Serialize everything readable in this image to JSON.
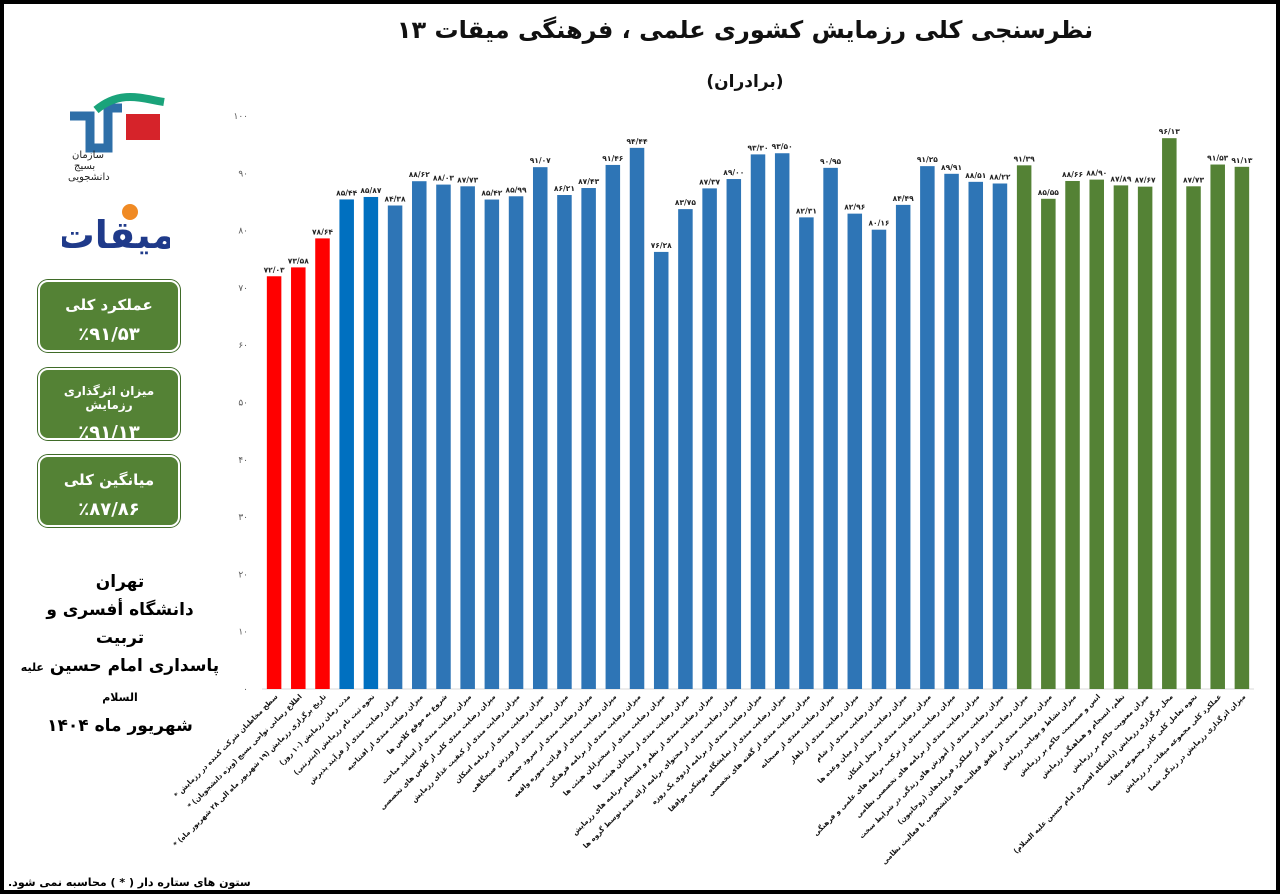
{
  "header": {
    "title": "نظرسنجی کلی  رزمایش کشوری علمی ، فرهنگی میقات ۱۳",
    "subtitle": "(برادران)"
  },
  "logos": {
    "basij_text": [
      "سازمان",
      "بسیج",
      "دانشجویی"
    ],
    "miqat_text": "میقات"
  },
  "summary_boxes": [
    {
      "label": "عملکرد کلی",
      "value": "٪۹۱/۵۳"
    },
    {
      "label": "میزان اثرگذاری رزمایش",
      "value": "٪۹۱/۱۳"
    },
    {
      "label": "میانگین کلی",
      "value": "٪۸۷/۸۶"
    }
  ],
  "location": {
    "city": "تهران",
    "line1": "دانشگاه أفسری و تربیت",
    "line2": "پاسداری امام حسین",
    "line2_suffix": "علیه السلام",
    "date": "شهریور ماه ۱۴۰۴"
  },
  "footnote": "ستون های ستاره دار ( * ) محاسبه نمی شود.",
  "colors": {
    "red": "#ff0000",
    "blue": "#2e75b6",
    "blue_dark": "#0070c0",
    "green": "#548235",
    "axis": "#d9d9d9"
  },
  "chart_data": {
    "type": "bar",
    "ylim": [
      0,
      100
    ],
    "yticks": [
      "۰",
      "۱۰",
      "۲۰",
      "۳۰",
      "۴۰",
      "۵۰",
      "۶۰",
      "۷۰",
      "۸۰",
      "۹۰",
      "۱۰۰"
    ],
    "grid": false,
    "legend": "none",
    "bars": [
      {
        "category": "سطح مخاطبان شرکت کننده در رزمایش *",
        "value": 72.03,
        "label": "۷۲/۰۳",
        "group": "red"
      },
      {
        "category": "اطلاع رسانی نواحی بسیج (ویژه دانشجویان) *",
        "value": 73.58,
        "label": "۷۳/۵۸",
        "group": "red"
      },
      {
        "category": "تاریخ برگزاری رزمایش (۱۹ شهریور ماه الی ۲۸ شهریور ماه) *",
        "value": 78.64,
        "label": "۷۸/۶۴",
        "group": "red"
      },
      {
        "category": "مدت زمان رزمایش (۱۰ روز)",
        "value": 85.44,
        "label": "۸۵/۴۴",
        "group": "blue_dark"
      },
      {
        "category": "نحوه ثبت نام رزمایش (اینترنتی)",
        "value": 85.87,
        "label": "۸۵/۸۷",
        "group": "blue_dark"
      },
      {
        "category": "میزان رضایت مندی از فرآیند پذیرش",
        "value": 84.38,
        "label": "۸۴/۳۸",
        "group": "blue"
      },
      {
        "category": "میزان رضایت مندی از افتتاحیه",
        "value": 88.62,
        "label": "۸۸/۶۲",
        "group": "blue"
      },
      {
        "category": "شروع به موقع کلاس ها",
        "value": 88.03,
        "label": "۸۸/۰۳",
        "group": "blue"
      },
      {
        "category": "میزان رضایت مندی از اساتید مباحث",
        "value": 87.73,
        "label": "۸۷/۷۳",
        "group": "blue"
      },
      {
        "category": "میزان رضایت مندی کلی از کلاس های تخصصی",
        "value": 85.42,
        "label": "۸۵/۴۲",
        "group": "blue"
      },
      {
        "category": "میزان رضایت مندی از کیفیت غذای رزمایش",
        "value": 85.99,
        "label": "۸۵/۹۹",
        "group": "blue"
      },
      {
        "category": "میزان رضایت مندی از برنامه اسکان",
        "value": 91.07,
        "label": "۹۱/۰۷",
        "group": "blue"
      },
      {
        "category": "میزان رضایت مندی از ورزش صبحگاهی",
        "value": 86.21,
        "label": "۸۶/۲۱",
        "group": "blue"
      },
      {
        "category": "میزان رضایت مندی از سرود جمعی",
        "value": 87.43,
        "label": "۸۷/۴۳",
        "group": "blue"
      },
      {
        "category": "میزان رضایت مندی از قرائت سوره واقعه",
        "value": 91.46,
        "label": "۹۱/۴۶",
        "group": "blue"
      },
      {
        "category": "میزان رضایت مندی از برنامه فرهنگی",
        "value": 94.44,
        "label": "۹۴/۴۴",
        "group": "blue"
      },
      {
        "category": "میزان رضایت مندی از سخنرانان هیئت ها",
        "value": 76.28,
        "label": "۷۶/۲۸",
        "group": "blue"
      },
      {
        "category": "میزان رضایت مندی از مداحان هیئت ها",
        "value": 83.75,
        "label": "۸۳/۷۵",
        "group": "blue"
      },
      {
        "category": "میزان رضایت مندی از نظم و انسجام برنامه های رزمایش",
        "value": 87.37,
        "label": "۸۷/۳۷",
        "group": "blue"
      },
      {
        "category": "میزان رضایت مندی از محتوای برنامه ارائه شده توسط گروه ها",
        "value": 89.0,
        "label": "۸۹/۰۰",
        "group": "blue"
      },
      {
        "category": "میزان رضایت مندی از برنامه اردوی یک روزه",
        "value": 93.3,
        "label": "۹۳/۳۰",
        "group": "blue"
      },
      {
        "category": "میزان رضایت مندی از نمایشگاه موشکی موافقا",
        "value": 93.5,
        "label": "۹۳/۵۰",
        "group": "blue"
      },
      {
        "category": "میزان رضایت مندی از گفته های تخصصی",
        "value": 82.31,
        "label": "۸۲/۳۱",
        "group": "blue"
      },
      {
        "category": "میزان رضایت مندی از صبحانه",
        "value": 90.95,
        "label": "۹۰/۹۵",
        "group": "blue"
      },
      {
        "category": "میزان رضایت مندی از ناهار",
        "value": 82.96,
        "label": "۸۲/۹۶",
        "group": "blue"
      },
      {
        "category": "میزان رضایت مندی از شام",
        "value": 80.16,
        "label": "۸۰/۱۶",
        "group": "blue"
      },
      {
        "category": "میزان رضایت مندی از میان وعده ها",
        "value": 84.49,
        "label": "۸۴/۴۹",
        "group": "blue"
      },
      {
        "category": "میزان رضایت مندی از محل اسکان",
        "value": 91.25,
        "label": "۹۱/۲۵",
        "group": "blue"
      },
      {
        "category": "میزان رضایت مندی از ترکیب برنامه های علمی و فرهنگی",
        "value": 89.91,
        "label": "۸۹/۹۱",
        "group": "blue"
      },
      {
        "category": "میزان رضایت مندی از برنامه های تخصصی نظامی",
        "value": 88.51,
        "label": "۸۸/۵۱",
        "group": "blue"
      },
      {
        "category": "میزان رضایت مندی از آموزش های زندگی در شرایط سخت",
        "value": 88.22,
        "label": "۸۸/۲۲",
        "group": "blue"
      },
      {
        "category": "میزان رضایت مندی از عملکرد فرماندهان (روحانیون)",
        "value": 91.39,
        "label": "۹۱/۳۹",
        "group": "green"
      },
      {
        "category": "میزان رضایت مندی از تلفیق فعالیت های دانشجویی با فعالیت نظامی",
        "value": 85.55,
        "label": "۸۵/۵۵",
        "group": "green"
      },
      {
        "category": "میزان نشاط و پویایی رزمایش",
        "value": 88.66,
        "label": "۸۸/۶۶",
        "group": "green"
      },
      {
        "category": "انس و صمیمیت حاکم بر رزمایش",
        "value": 88.9,
        "label": "۸۸/۹۰",
        "group": "green"
      },
      {
        "category": "نظم، انسجام و هماهنگی رزمایش",
        "value": 87.89,
        "label": "۸۷/۸۹",
        "group": "green"
      },
      {
        "category": "میزان معنویت حاکم بر رزمایش",
        "value": 87.67,
        "label": "۸۷/۶۷",
        "group": "green"
      },
      {
        "category": "محل برگزاری رزمایش (دانشگاه افسری امام حسین علیه السلام)",
        "value": 96.13,
        "label": "۹۶/۱۳",
        "group": "green"
      },
      {
        "category": "نحوه تعامل کلی کادر مجموعه میقات",
        "value": 87.73,
        "label": "۸۷/۷۳",
        "group": "green"
      },
      {
        "category": "عملکرد کلی مجموعه میقات در رزمایش",
        "value": 91.53,
        "label": "۹۱/۵۳",
        "group": "green"
      },
      {
        "category": "میزان اثرگذاری رزمایش در زندگی شما",
        "value": 91.13,
        "label": "۹۱/۱۳",
        "group": "green"
      }
    ]
  }
}
